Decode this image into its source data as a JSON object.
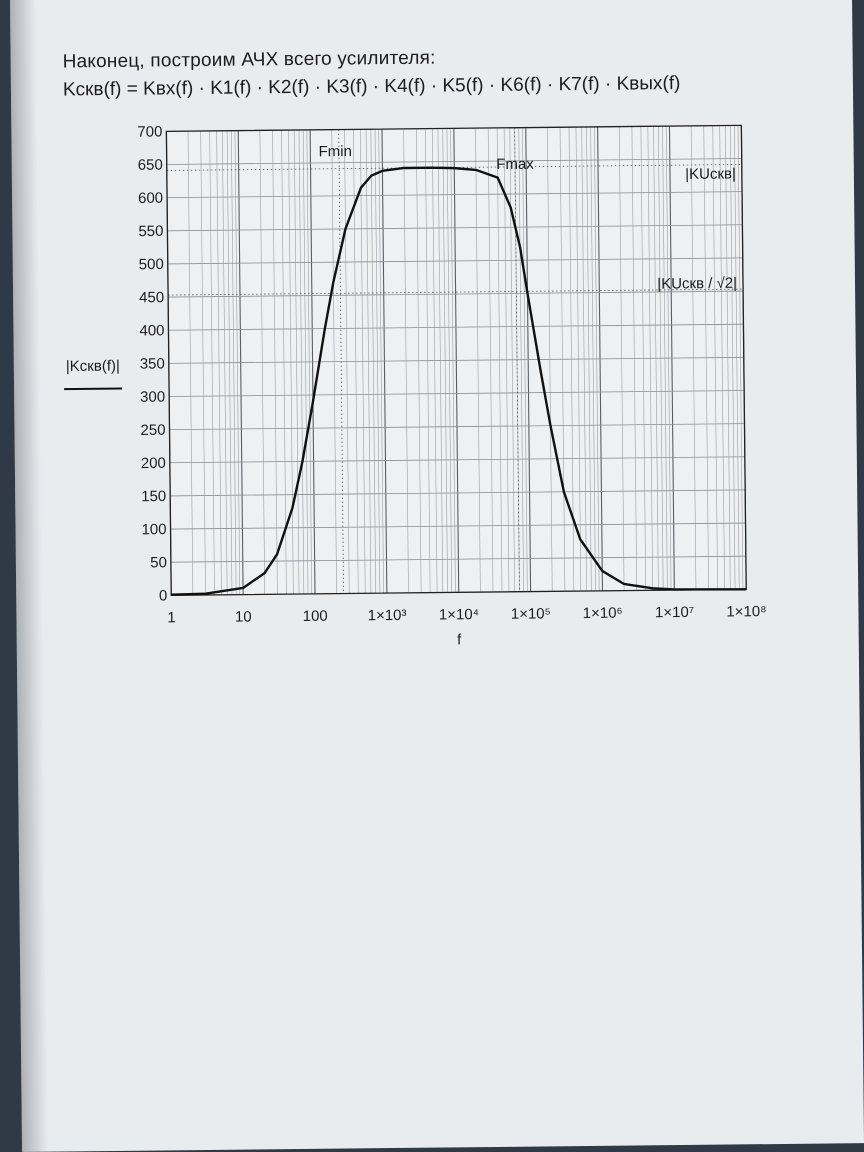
{
  "page": {
    "intro": "Наконец, построим АЧХ всего усилителя:",
    "formula": "Kскв(f) = Kвх(f) · K1(f) · K2(f) · K3(f) · K4(f) · K5(f) · K6(f) · K7(f) · Kвых(f)"
  },
  "chart_data": {
    "type": "line",
    "x_scale": "log",
    "xlabel": "f",
    "ylabel": "|Kскв(f)|",
    "xlim": [
      1,
      100000000
    ],
    "ylim": [
      0,
      700
    ],
    "x_ticks": [
      "1",
      "10",
      "100",
      "1×10³",
      "1×10⁴",
      "1×10⁵",
      "1×10⁶",
      "1×10⁷",
      "1×10⁸"
    ],
    "y_ticks": [
      "0",
      "50",
      "100",
      "150",
      "200",
      "250",
      "300",
      "350",
      "400",
      "450",
      "500",
      "550",
      "600",
      "650",
      "700"
    ],
    "grid": true,
    "annotations": [
      "Fmin",
      "Fmax",
      "|KUскв|",
      "|KUскв / √2|"
    ],
    "series": [
      {
        "x": [
          1,
          3,
          10,
          20,
          30,
          50,
          70,
          100,
          150,
          200,
          300,
          500,
          700,
          1000,
          2000,
          5000,
          10000,
          20000,
          40000,
          60000,
          80000,
          100000,
          150000,
          200000,
          300000,
          500000,
          1000000,
          2000000,
          5000000,
          10000000,
          100000000
        ],
        "y": [
          1,
          2,
          10,
          32,
          60,
          130,
          200,
          290,
          400,
          470,
          550,
          612,
          630,
          637,
          641,
          641,
          640,
          637,
          625,
          580,
          520,
          450,
          330,
          250,
          150,
          78,
          30,
          10,
          3,
          1,
          0
        ]
      }
    ],
    "reference_lines": [
      {
        "label": "|KUскв|",
        "y": 641
      },
      {
        "label": "|KUскв / √2|",
        "y": 453
      },
      {
        "label": "Fmin",
        "x": 250
      },
      {
        "label": "Fmax",
        "x": 70000
      }
    ]
  }
}
